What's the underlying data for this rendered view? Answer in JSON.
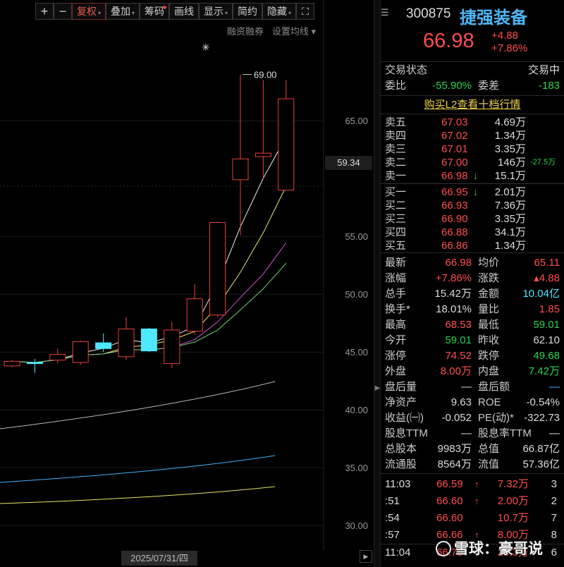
{
  "toolbar": {
    "plus": "+",
    "minus": "−",
    "fuquan": "复权",
    "diejia": "叠加",
    "chouma": "筹码",
    "huaxian": "画线",
    "xianshi": "显示",
    "jianyue": "简约",
    "yincang": "隐藏",
    "fullscreen": "⛶"
  },
  "sub_links": {
    "rzrq": "融资融券",
    "ma_settings": "设置均线"
  },
  "chart": {
    "high_marker": "69.00",
    "current_price_box": "59.34",
    "date_label": "2025/07/31/四",
    "star": "✳"
  },
  "chart_data": {
    "type": "candlestick",
    "y_ticks": [
      "65.00",
      "55.00",
      "50.00",
      "45.00",
      "40.00",
      "35.00",
      "30.00"
    ],
    "y_tick_values": [
      65,
      55,
      50,
      45,
      40,
      35,
      30
    ],
    "ylim": [
      28.0,
      73.0
    ],
    "candles": [
      {
        "o": 43.8,
        "c": 44.2,
        "h": 44.3,
        "l": 43.7,
        "color": "red"
      },
      {
        "o": 44.1,
        "c": 44.0,
        "h": 44.4,
        "l": 43.2,
        "color": "cyan"
      },
      {
        "o": 44.3,
        "c": 44.8,
        "h": 45.3,
        "l": 44.0,
        "color": "red"
      },
      {
        "o": 44.1,
        "c": 45.9,
        "h": 46.0,
        "l": 43.9,
        "color": "red"
      },
      {
        "o": 45.8,
        "c": 45.3,
        "h": 46.6,
        "l": 45.0,
        "color": "cyan"
      },
      {
        "o": 44.6,
        "c": 47.0,
        "h": 48.0,
        "l": 44.3,
        "color": "red"
      },
      {
        "o": 47.0,
        "c": 45.1,
        "h": 47.1,
        "l": 45.0,
        "color": "cyan"
      },
      {
        "o": 44.0,
        "c": 46.9,
        "h": 47.6,
        "l": 43.6,
        "color": "red"
      },
      {
        "o": 46.8,
        "c": 49.6,
        "h": 50.9,
        "l": 46.5,
        "color": "red"
      },
      {
        "o": 48.2,
        "c": 56.2,
        "h": 56.3,
        "l": 48.0,
        "color": "red"
      },
      {
        "o": 59.9,
        "c": 61.7,
        "h": 69.0,
        "l": 55.1,
        "color": "red"
      },
      {
        "o": 61.9,
        "c": 62.2,
        "h": 68.5,
        "l": 59.9,
        "color": "red"
      },
      {
        "o": 59.0,
        "c": 66.9,
        "h": 68.5,
        "l": 59.0,
        "color": "red"
      }
    ]
  },
  "quote": {
    "code": "300875",
    "name": "捷强装备",
    "price": "66.98",
    "change": "+4.88",
    "pct": "+7.86%"
  },
  "status": {
    "state_label": "交易状态",
    "state_value": "交易中",
    "weibi_label": "委比",
    "weibi_value": "-55.90%",
    "weicha_label": "委差",
    "weicha_value": "-183"
  },
  "l2_link": "购买L2查看十档行情",
  "asks": [
    {
      "label": "卖五",
      "price": "67.03",
      "amount": "4.69万",
      "extra": "",
      "arrow": ""
    },
    {
      "label": "卖四",
      "price": "67.02",
      "amount": "1.34万",
      "extra": "",
      "arrow": ""
    },
    {
      "label": "卖三",
      "price": "67.01",
      "amount": "3.35万",
      "extra": "",
      "arrow": ""
    },
    {
      "label": "卖二",
      "price": "67.00",
      "amount": "146万",
      "extra": "-27.5万",
      "arrow": ""
    },
    {
      "label": "卖一",
      "price": "66.98",
      "amount": "15.1万",
      "extra": "",
      "arrow": "↓"
    }
  ],
  "bids": [
    {
      "label": "买一",
      "price": "66.95",
      "amount": "2.01万",
      "extra": "",
      "arrow": "↓"
    },
    {
      "label": "买二",
      "price": "66.93",
      "amount": "7.36万",
      "extra": "",
      "arrow": ""
    },
    {
      "label": "买三",
      "price": "66.90",
      "amount": "3.35万",
      "extra": "",
      "arrow": ""
    },
    {
      "label": "买四",
      "price": "66.88",
      "amount": "34.1万",
      "extra": "",
      "arrow": ""
    },
    {
      "label": "买五",
      "price": "66.86",
      "amount": "1.34万",
      "extra": "",
      "arrow": ""
    }
  ],
  "stats": [
    {
      "l1": "最新",
      "v1": "66.98",
      "c1": "red",
      "l2": "均价",
      "v2": "65.11",
      "c2": "red"
    },
    {
      "l1": "涨幅",
      "v1": "+7.86%",
      "c1": "red",
      "l2": "涨跌",
      "v2": "▴4.88",
      "c2": "red"
    },
    {
      "l1": "总手",
      "v1": "15.42万",
      "c1": "white",
      "l2": "金额",
      "v2": "10.04亿",
      "c2": "cyan"
    },
    {
      "l1": "换手*",
      "v1": "18.01%",
      "c1": "white",
      "l2": "量比",
      "v2": "1.85",
      "c2": "red"
    },
    {
      "l1": "最高",
      "v1": "68.53",
      "c1": "red",
      "l2": "最低",
      "v2": "59.01",
      "c2": "green"
    },
    {
      "l1": "今开",
      "v1": "59.01",
      "c1": "green",
      "l2": "昨收",
      "v2": "62.10",
      "c2": "white"
    },
    {
      "l1": "涨停",
      "v1": "74.52",
      "c1": "red",
      "l2": "跌停",
      "v2": "49.68",
      "c2": "green"
    },
    {
      "l1": "外盘",
      "v1": "8.00万",
      "c1": "red",
      "l2": "内盘",
      "v2": "7.42万",
      "c2": "green"
    },
    {
      "l1": "盘后量",
      "v1": "—",
      "c1": "white",
      "l2": "盘后额",
      "v2": "—",
      "c2": "blue"
    },
    {
      "l1": "净资产",
      "v1": "9.63",
      "c1": "white",
      "l2": "ROE",
      "v2": "-0.54%",
      "c2": "white"
    },
    {
      "l1": "收益(㈠)",
      "v1": "-0.052",
      "c1": "white",
      "l2": "PE(动)*",
      "v2": "-322.73",
      "c2": "white"
    },
    {
      "l1": "股息TTM",
      "v1": "—",
      "c1": "white",
      "l2": "股息率TTM",
      "v2": "—",
      "c2": "white"
    },
    {
      "l1": "总股本",
      "v1": "9983万",
      "c1": "white",
      "l2": "总值",
      "v2": "66.87亿",
      "c2": "white"
    },
    {
      "l1": "流通股",
      "v1": "8564万",
      "c1": "white",
      "l2": "流值",
      "v2": "57.36亿",
      "c2": "white"
    }
  ],
  "ticks": [
    {
      "time": "11:03",
      "price": "66.59",
      "arrow": "↑",
      "vol": "7.32万",
      "n": "3"
    },
    {
      "time": ":51",
      "price": "66.60",
      "arrow": "↑",
      "vol": "2.00万",
      "n": "2"
    },
    {
      "time": ":54",
      "price": "66.60",
      "arrow": "",
      "vol": "10.7万",
      "n": "7"
    },
    {
      "time": ":57",
      "price": "66.66",
      "arrow": "↑",
      "vol": "8.00万",
      "n": "8"
    },
    {
      "time": "11:04",
      "price": "66.73",
      "arrow": "↑",
      "vol": "28.3万",
      "n": "6"
    }
  ],
  "watermark": "雪球：豪哥说"
}
